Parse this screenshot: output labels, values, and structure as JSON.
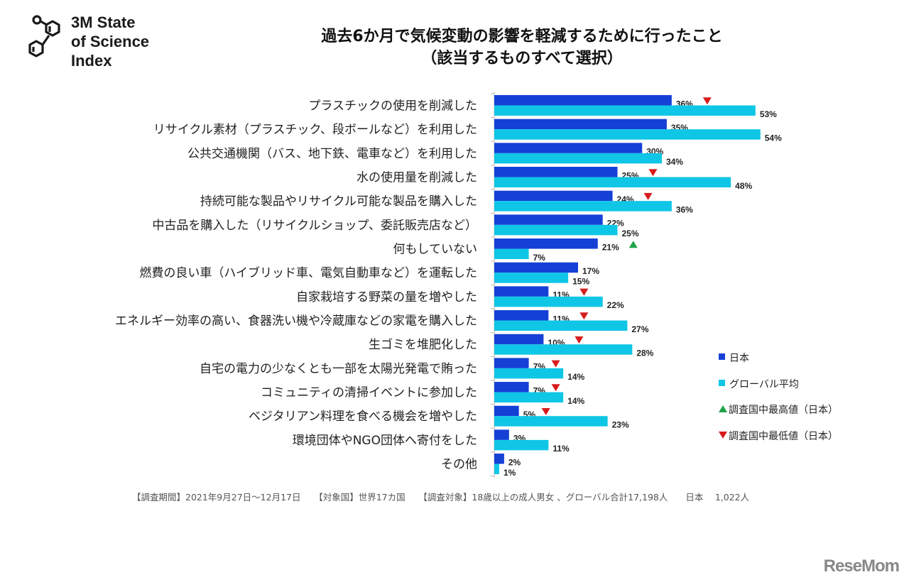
{
  "logo": {
    "lines": [
      "3M State",
      "of Science",
      "Index"
    ]
  },
  "title": {
    "line1": "過去6か月で気候変動の影響を軽減するために行ったこと",
    "line2": "（該当するものすべて選択）"
  },
  "chart_data": {
    "type": "bar",
    "orientation": "horizontal",
    "categories": [
      "プラスチックの使用を削減した",
      "リサイクル素材（プラスチック、段ボールなど）を利用した",
      "公共交通機関（バス、地下鉄、電車など）を利用した",
      "水の使用量を削減した",
      "持続可能な製品やリサイクル可能な製品を購入した",
      "中古品を購入した（リサイクルショップ、委託販売店など）",
      "何もしていない",
      "燃費の良い車（ハイブリッド車、電気自動車など）を運転した",
      "自家栽培する野菜の量を増やした",
      "エネルギー効率の高い、食器洗い機や冷蔵庫などの家電を購入した",
      "生ゴミを堆肥化した",
      "自宅の電力の少なくとも一部を太陽光発電で賄った",
      "コミュニティの清掃イベントに参加した",
      "ベジタリアン料理を食べる機会を増やした",
      "環境団体やNGO団体へ寄付をした",
      "その他"
    ],
    "series": [
      {
        "name": "日本",
        "color": "#1540d6",
        "values": [
          36,
          35,
          30,
          25,
          24,
          22,
          21,
          17,
          11,
          11,
          10,
          7,
          7,
          5,
          3,
          2
        ]
      },
      {
        "name": "グローバル平均",
        "color": "#0fc6e6",
        "values": [
          53,
          54,
          34,
          48,
          36,
          25,
          7,
          15,
          22,
          27,
          28,
          14,
          14,
          23,
          11,
          1
        ]
      }
    ],
    "markers": [
      "down",
      "",
      "",
      "down",
      "down",
      "",
      "up",
      "",
      "down",
      "down",
      "down",
      "down",
      "down",
      "down",
      "",
      ""
    ],
    "marker_legend": {
      "up": {
        "label": "調査国中最高値（日本）",
        "color": "#1fa34a"
      },
      "down": {
        "label": "調査国中最低値（日本）",
        "color": "#d81b1b"
      }
    },
    "value_suffix": "%",
    "xlim": [
      0,
      55
    ],
    "grid": false,
    "legend_position": "right"
  },
  "footer": "【調査期間】2021年9月27日～12月17日　　【対象国】世界17カ国　　【調査対象】18歳以上の成人男女 、グローバル合計17,198人　　日本　 1,022人",
  "watermark": "ReseMom"
}
